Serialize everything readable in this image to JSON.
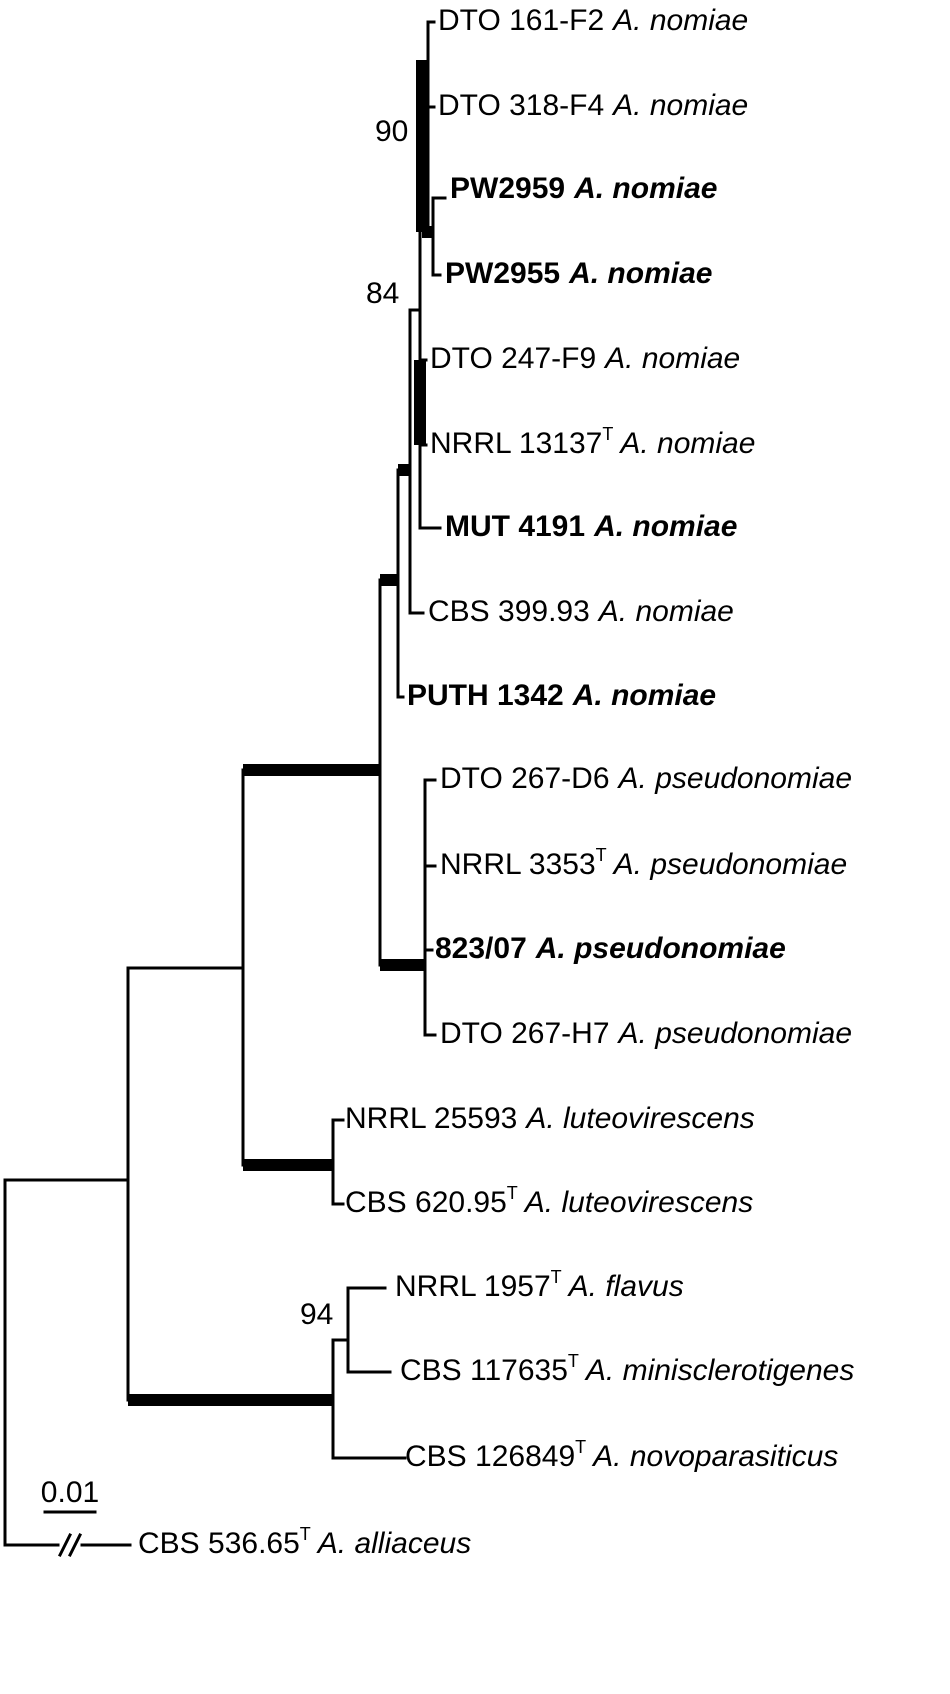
{
  "taxa": [
    {
      "strain": "DTO 161-F2",
      "species": "A. nomiae",
      "highlighted": false
    },
    {
      "strain": "DTO 318-F4",
      "species": "A. nomiae",
      "highlighted": false
    },
    {
      "strain": "PW2959",
      "species": "A. nomiae",
      "highlighted": true
    },
    {
      "strain": "PW2955",
      "species": "A. nomiae",
      "highlighted": true
    },
    {
      "strain": "DTO 247-F9",
      "species": "A. nomiae",
      "highlighted": false
    },
    {
      "strain": "NRRL 13137",
      "superscript": "T",
      "species": "A. nomiae",
      "highlighted": false
    },
    {
      "strain": "MUT 4191",
      "species": "A. nomiae",
      "highlighted": true
    },
    {
      "strain": "CBS 399.93",
      "species": "A. nomiae",
      "highlighted": false
    },
    {
      "strain": "PUTH 1342",
      "species": "A. nomiae",
      "highlighted": true
    },
    {
      "strain": "DTO 267-D6",
      "species": "A. pseudonomiae",
      "highlighted": false
    },
    {
      "strain": "NRRL 3353",
      "superscript": "T",
      "species": "A. pseudonomiae",
      "highlighted": false
    },
    {
      "strain": "823/07",
      "species": "A. pseudonomiae",
      "highlighted": true
    },
    {
      "strain": "DTO 267-H7",
      "species": "A. pseudonomiae",
      "highlighted": false
    },
    {
      "strain": "NRRL 25593",
      "species": "A. luteovirescens",
      "highlighted": false
    },
    {
      "strain": "CBS 620.95",
      "superscript": "T",
      "species": "A. luteovirescens",
      "highlighted": false
    },
    {
      "strain": "NRRL 1957",
      "superscript": "T",
      "species": "A. flavus",
      "highlighted": false
    },
    {
      "strain": "CBS 117635",
      "superscript": "T",
      "species": "A. minisclerotigenes",
      "highlighted": false
    },
    {
      "strain": "CBS 126849",
      "superscript": "T",
      "species": "A. novoparasiticus",
      "highlighted": false
    },
    {
      "strain": "CBS 536.65",
      "superscript": "T",
      "species": "A. alliaceus",
      "highlighted": false
    }
  ],
  "support_values": [
    90,
    84,
    94
  ],
  "scale_bar": 0.01,
  "highlight_color": "#ff0000"
}
